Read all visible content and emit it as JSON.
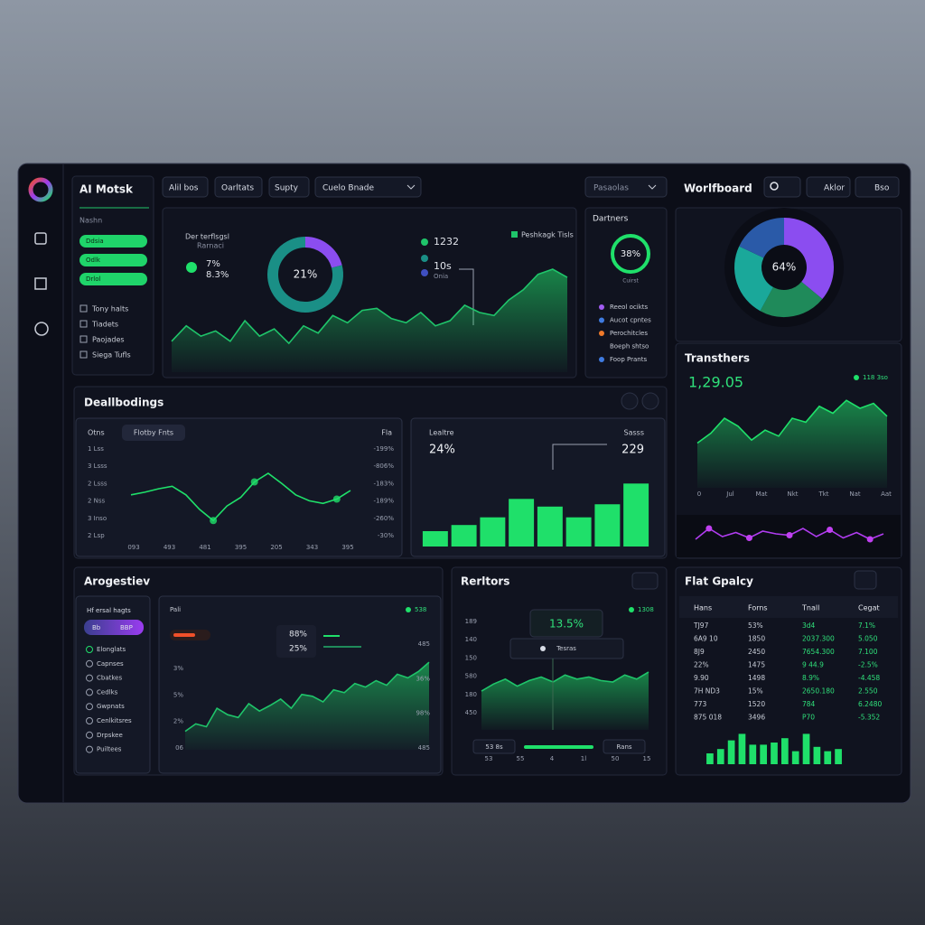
{
  "app": {
    "title": "AI Motsk",
    "section": "Nashn",
    "pills": [
      "Ddsia",
      "Odlk",
      "Drlol"
    ],
    "menu": [
      "Tony halts",
      "Tiadets",
      "Paojades",
      "Siega Tufls"
    ]
  },
  "toolbar": {
    "buttons": [
      "Alil bos",
      "Oarltats",
      "Supty"
    ],
    "select": "Cuelo Bnade",
    "filter": "Pasaolas"
  },
  "header": {
    "title": "Worlfboard",
    "buttons": [
      "Aklor",
      "Bso"
    ]
  },
  "overview": {
    "label": "Der terflsgsl",
    "sublabel": "Rarnaci",
    "stats": [
      "7%",
      "8.3%"
    ],
    "donut_label": "21%",
    "donut": {
      "values": [
        21,
        79
      ],
      "colors": [
        "#8b4df0",
        "#1a8f86"
      ]
    },
    "metrics": [
      "1232",
      "10s",
      "Onia"
    ],
    "legend": "Peshkagk Tisls",
    "area": {
      "color": "#1fc46a",
      "ylim": [
        0,
        100
      ],
      "values": [
        30,
        45,
        35,
        40,
        30,
        50,
        35,
        42,
        28,
        45,
        38,
        55,
        48,
        60,
        62,
        52,
        48,
        58,
        45,
        50,
        65,
        58,
        55,
        70,
        80,
        95,
        100,
        92
      ]
    }
  },
  "partners": {
    "title": "Dartners",
    "ring_label": "38%",
    "caption": "Cuirst",
    "items": [
      {
        "label": "Reeol ocikts",
        "color": "#a25cf2"
      },
      {
        "label": "Aucot cpntes",
        "color": "#3f7be0"
      },
      {
        "label": "Perochitcles",
        "color": "#f07a2a"
      },
      {
        "label": "Boeph shtso"
      },
      {
        "label": "Foop Prants",
        "color": "#3f7be0"
      }
    ]
  },
  "world": {
    "label": "64%",
    "donut": {
      "values": [
        36,
        22,
        24,
        18
      ],
      "colors": [
        "#8b4df0",
        "#1f8a5a",
        "#1aa89a",
        "#2a5aa8"
      ]
    }
  },
  "transfers": {
    "title": "Transthers",
    "value": "1,29.05",
    "legend": "118 3so",
    "x_labels": [
      "0",
      "Jul",
      "Mat",
      "Nkt",
      "Tkt",
      "Nat",
      "Aat"
    ],
    "area": {
      "color": "#1fe06a",
      "ylim": [
        0,
        100
      ],
      "values": [
        45,
        55,
        70,
        62,
        48,
        58,
        52,
        70,
        66,
        82,
        75,
        88,
        80,
        85,
        72
      ]
    },
    "trend": {
      "color": "#b03cf0",
      "ylim": [
        0,
        100
      ],
      "values": [
        30,
        70,
        40,
        55,
        35,
        60,
        50,
        45,
        70,
        40,
        65,
        35,
        55,
        30,
        50
      ]
    }
  },
  "dashboard": {
    "title": "Deallbodings",
    "line": {
      "label": "Otns",
      "tab": "Flotby Fnts",
      "right_label": "Fla",
      "y_labels_left": [
        "1 Lss",
        "3 Lsss",
        "2 Lsss",
        "2 Nss",
        "3 Inso",
        "2 Lsp"
      ],
      "y_labels_right": [
        "-199%",
        "-806%",
        "-183%",
        "-189%",
        "-260%",
        "-30%"
      ],
      "x_labels": [
        "093",
        "493",
        "481",
        "395",
        "205",
        "343",
        "395"
      ],
      "color": "#1fe06a",
      "ylim": [
        0,
        100
      ],
      "values": [
        55,
        58,
        62,
        65,
        55,
        38,
        25,
        42,
        52,
        70,
        80,
        68,
        55,
        48,
        45,
        50,
        60
      ]
    },
    "bars": {
      "label": "Lealtre",
      "value": "24%",
      "label2": "Sasss",
      "value2": "229",
      "color": "#1fe06a",
      "ylim": [
        0,
        100
      ],
      "values": [
        20,
        28,
        38,
        62,
        52,
        38,
        55,
        82
      ]
    }
  },
  "progress": {
    "title": "Arogestiev",
    "side_title": "Hf ersal hagts",
    "pill": [
      "Bb",
      "BBP"
    ],
    "items": [
      "Elonglats",
      "Capnses",
      "Cbatkes",
      "Cedlks",
      "Gwpnats",
      "Cenlkitsres",
      "Drpskee",
      "Puiltees"
    ],
    "chart": {
      "label": "Pali",
      "legend": "538",
      "stats": [
        "88%",
        "25%"
      ],
      "y_labels_left": [
        "3%",
        "5%",
        "2%",
        "06"
      ],
      "y_labels_right": [
        "485",
        "36%",
        "98%",
        "485"
      ],
      "color": "#1fc46a",
      "ylim": [
        0,
        100
      ],
      "values": [
        20,
        28,
        25,
        45,
        38,
        35,
        50,
        42,
        48,
        55,
        45,
        60,
        58,
        52,
        65,
        62,
        72,
        68,
        75,
        70,
        82,
        78,
        85,
        95
      ]
    }
  },
  "reports": {
    "title": "Rerltors",
    "legend": "1308",
    "tooltip": "13.5%",
    "tooltip_label": "Tesras",
    "y_labels": [
      "189",
      "140",
      "150",
      "580",
      "180",
      "450"
    ],
    "x_labels": [
      "53",
      "55",
      "4",
      "1l",
      "50",
      "15"
    ],
    "controls": [
      "53 8s",
      "Rans"
    ],
    "color": "#1fc46a",
    "ylim": [
      0,
      100
    ],
    "values": [
      55,
      65,
      72,
      62,
      70,
      75,
      68,
      78,
      72,
      75,
      70,
      68,
      78,
      72,
      82
    ]
  },
  "policy": {
    "title": "Flat Gpalcy",
    "columns": [
      "Hans",
      "Forns",
      "Tnall",
      "Cegat"
    ],
    "rows": [
      [
        "TJ97",
        "53%",
        "3d4",
        "7.1%"
      ],
      [
        "6A9 10",
        "1850",
        "2037.300",
        "5.050"
      ],
      [
        "8J9",
        "2450",
        "7654.300",
        "7.100"
      ],
      [
        "22%",
        "1475",
        "9 44.9",
        "-2.5%"
      ],
      [
        "9.90",
        "1498",
        "8.9%",
        "-4.458"
      ],
      [
        "7H ND3",
        "15%",
        "2650.180",
        "2.550"
      ],
      [
        "773",
        "1520",
        "784",
        "6.2480"
      ],
      [
        "875 018",
        "3496",
        "P70",
        "-5.352"
      ]
    ],
    "bars": {
      "color": "#1fe06a",
      "ylim": [
        0,
        100
      ],
      "values": [
        25,
        35,
        55,
        70,
        45,
        45,
        50,
        60,
        30,
        70,
        40,
        30,
        35
      ]
    }
  }
}
